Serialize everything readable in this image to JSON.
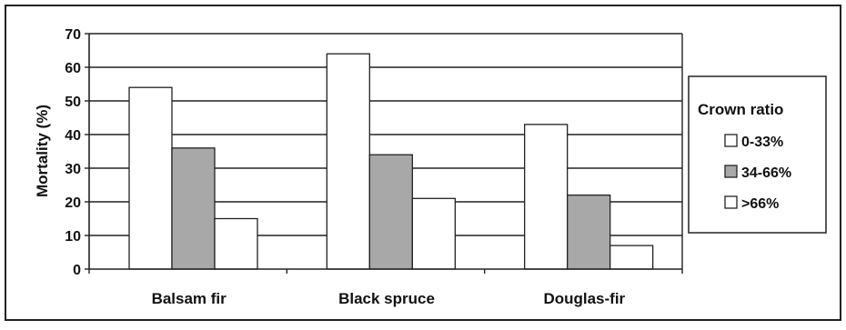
{
  "chart_data": {
    "type": "bar",
    "categories": [
      "Balsam fir",
      "Black spruce",
      "Douglas-fir"
    ],
    "ylabel": "Mortality (%)",
    "xlabel": "",
    "ylim": [
      0,
      70
    ],
    "yticks": [
      "0",
      "10",
      "20",
      "30",
      "40",
      "50",
      "60",
      "70"
    ],
    "grid": true,
    "legend": {
      "title": "Crown ratio",
      "placement": "right"
    },
    "series": [
      {
        "name": "0-33%",
        "color": "#ffffff",
        "values": [
          54,
          64,
          43
        ]
      },
      {
        "name": "34-66%",
        "color": "#a8a8a8",
        "values": [
          36,
          34,
          22
        ]
      },
      {
        "name": ">66%",
        "color": "#ffffff",
        "values": [
          15,
          21,
          7
        ]
      }
    ]
  }
}
